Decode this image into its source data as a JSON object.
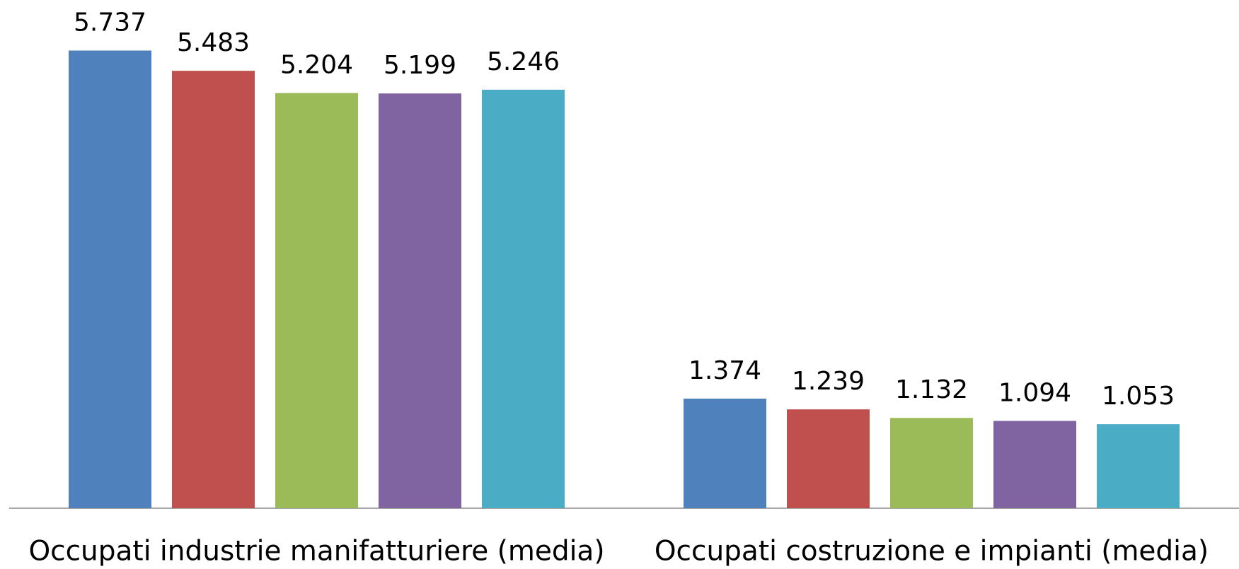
{
  "chart_data": {
    "type": "bar",
    "categories": [
      "Occupati industrie manifatturiere (media)",
      "Occupati costruzione e impianti (media)"
    ],
    "series": [
      {
        "color": "#4f81bd",
        "values": [
          5737,
          1374
        ],
        "value_labels": [
          "5.737",
          "1.374"
        ]
      },
      {
        "color": "#c0504d",
        "values": [
          5483,
          1239
        ],
        "value_labels": [
          "5.483",
          "1.239"
        ]
      },
      {
        "color": "#9bbb59",
        "values": [
          5204,
          1132
        ],
        "value_labels": [
          "5.204",
          "1.132"
        ]
      },
      {
        "color": "#8064a2",
        "values": [
          5199,
          1094
        ],
        "value_labels": [
          "5.199",
          "1.094"
        ]
      },
      {
        "color": "#4bacc6",
        "values": [
          5246,
          1053
        ],
        "value_labels": [
          "5.246",
          "1.053"
        ]
      }
    ]
  }
}
